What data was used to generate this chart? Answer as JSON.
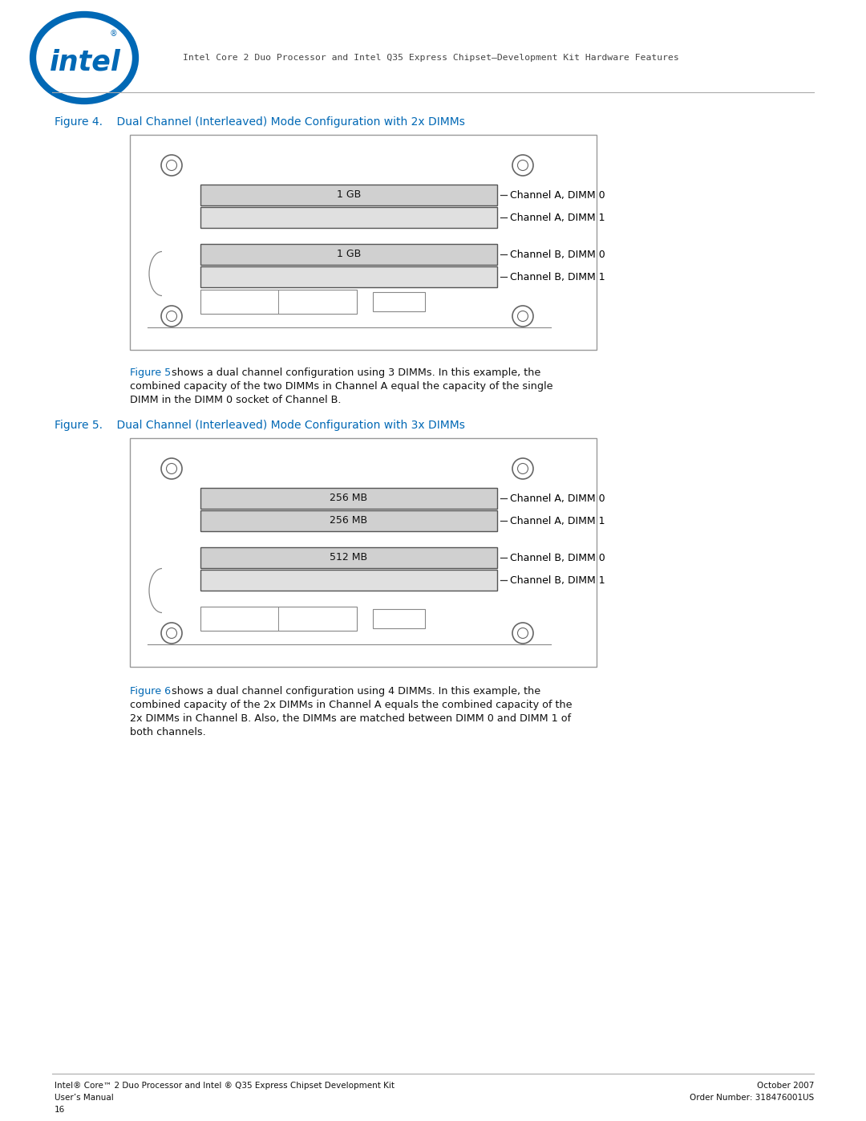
{
  "page_width": 10.8,
  "page_height": 13.97,
  "bg_color": "#ffffff",
  "header_text": "Intel Core 2 Duo Processor and Intel Q35 Express Chipset—Development Kit Hardware Features",
  "intel_blue": "#0068b5",
  "figure4_title": "Figure 4.    Dual Channel (Interleaved) Mode Configuration with 2x DIMMs",
  "figure5_title": "Figure 5.    Dual Channel (Interleaved) Mode Configuration with 3x DIMMs",
  "channel_labels": [
    "Channel A, DIMM 0",
    "Channel A, DIMM 1",
    "Channel B, DIMM 0",
    "Channel B, DIMM 1"
  ],
  "fig4_labels": [
    "1 GB",
    "",
    "1 GB",
    ""
  ],
  "fig5_labels": [
    "256 MB",
    "256 MB",
    "512 MB",
    ""
  ],
  "body_text1_blue": "Figure 5",
  "body_text1_rest": " shows a dual channel configuration using 3 DIMMs. In this example, the\ncombined capacity of the two DIMMs in Channel A equal the capacity of the single\nDIMM in the DIMM 0 socket of Channel B.",
  "body_text2_blue": "Figure 6",
  "body_text2_rest": " shows a dual channel configuration using 4 DIMMs. In this example, the\ncombined capacity of the 2x DIMMs in Channel A equals the combined capacity of the\n2x DIMMs in Channel B. Also, the DIMMs are matched between DIMM 0 and DIMM 1 of\nboth channels.",
  "footer_left1": "Intel® Core™ 2 Duo Processor and Intel ® Q35 Express Chipset Development Kit",
  "footer_left2": "User’s Manual",
  "footer_left3": "16",
  "footer_right1": "October 2007",
  "footer_right2": "Order Number: 318476001US",
  "dimm_fill": "#d0d0d0",
  "dimm_fill_empty": "#e0e0e0",
  "dimm_edge": "#555555",
  "label_color": "#000000",
  "box_edge": "#999999"
}
